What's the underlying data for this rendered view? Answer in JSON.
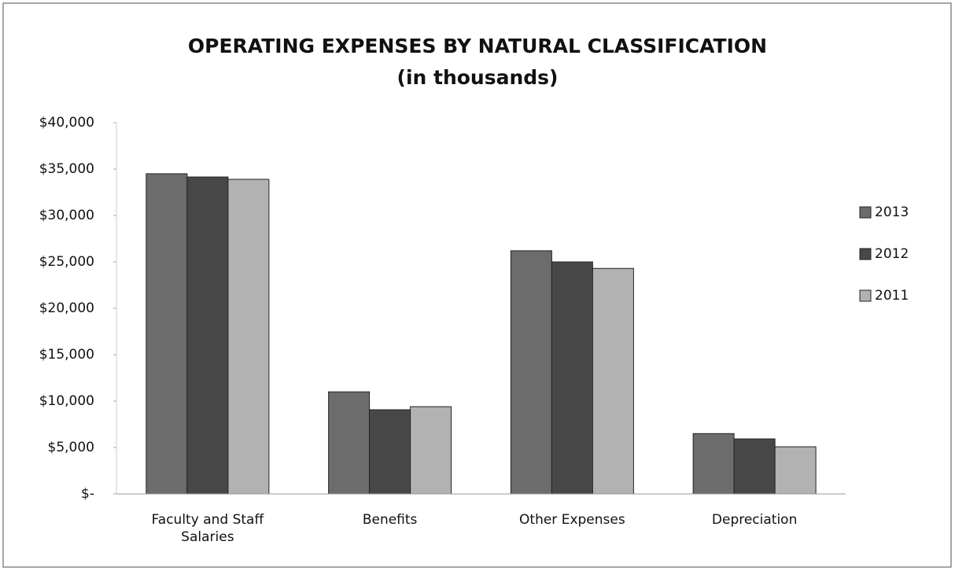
{
  "chart_data": {
    "type": "bar",
    "title": "OPERATING EXPENSES BY NATURAL CLASSIFICATION",
    "subtitle": "(in thousands)",
    "categories": [
      "Faculty and Staff Salaries",
      "Benefits",
      "Other Expenses",
      "Depreciation"
    ],
    "series": [
      {
        "name": "2013",
        "color": "#6c6c6c",
        "values": [
          34500,
          11000,
          26200,
          6500
        ]
      },
      {
        "name": "2012",
        "color": "#484848",
        "values": [
          34150,
          9070,
          25000,
          5930
        ]
      },
      {
        "name": "2011",
        "color": "#b2b2b2",
        "values": [
          33900,
          9400,
          24300,
          5080
        ]
      }
    ],
    "ylim": [
      0,
      40000
    ],
    "yticks": [
      {
        "value": 0,
        "label": "$-"
      },
      {
        "value": 5000,
        "label": "$5,000"
      },
      {
        "value": 10000,
        "label": "$10,000"
      },
      {
        "value": 15000,
        "label": "$15,000"
      },
      {
        "value": 20000,
        "label": "$20,000"
      },
      {
        "value": 25000,
        "label": "$25,000"
      },
      {
        "value": 30000,
        "label": "$30,000"
      },
      {
        "value": 35000,
        "label": "$35,000"
      },
      {
        "value": 40000,
        "label": "$40,000"
      }
    ],
    "grid": false,
    "legend": "right"
  }
}
